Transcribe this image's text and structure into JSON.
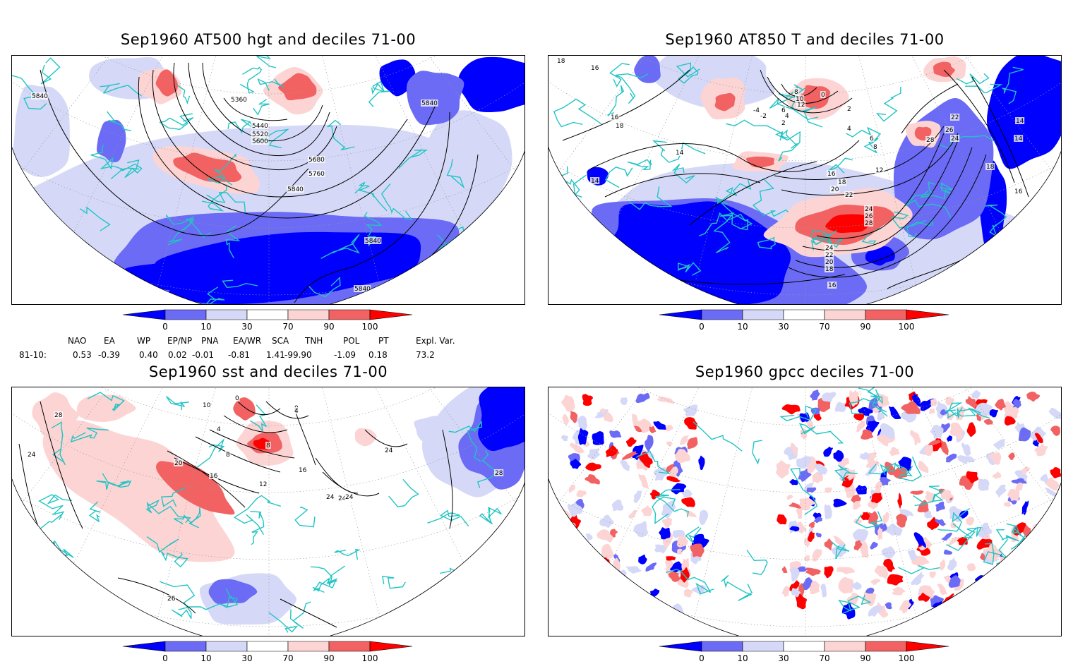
{
  "panels": [
    {
      "id": "p1",
      "title": "Sep1960 AT500 hgt and deciles 71-00",
      "contour_labels": [
        "5840",
        "5360",
        "5440",
        "5520",
        "5600",
        "5680",
        "5760",
        "5840",
        "5840",
        "5840",
        "5840"
      ]
    },
    {
      "id": "p2",
      "title": "Sep1960 AT850 T and deciles 71-00",
      "contour_labels": [
        "18",
        "16",
        "18",
        "16",
        "14",
        "14",
        "8",
        "10",
        "12",
        "6",
        "4",
        "2",
        "0",
        "-2",
        "-4",
        "2",
        "4",
        "6",
        "8",
        "12",
        "16",
        "18",
        "20",
        "22",
        "24",
        "26",
        "28",
        "24",
        "22",
        "20",
        "18",
        "16",
        "18",
        "26",
        "28",
        "22",
        "24",
        "18",
        "14",
        "16",
        "14"
      ]
    },
    {
      "id": "p3",
      "title": "Sep1960 sst and deciles 71-00",
      "contour_labels": [
        "28",
        "24",
        "24",
        "20",
        "16",
        "12",
        "8",
        "8",
        "4",
        "0",
        "0",
        "4",
        "16",
        "24",
        "24",
        "24",
        "28",
        "26",
        "10"
      ]
    },
    {
      "id": "p4",
      "title": "Sep1960 gpcc deciles 71-00",
      "contour_labels": []
    }
  ],
  "colorbar": {
    "labels": [
      "0",
      "10",
      "30",
      "70",
      "90",
      "100"
    ],
    "colors": {
      "below_0": "#0000ff",
      "d0_10": "#6b6bf5",
      "d10_30": "#d5d9f7",
      "d30_70": "#ffffff",
      "d70_90": "#fcd4d4",
      "d90_100": "#f26262",
      "above_100": "#ff0000"
    }
  },
  "indices": {
    "row_label": "81-10:",
    "names": [
      "NAO",
      "EA",
      "WP",
      "EP/NP",
      "PNA",
      "EA/WR",
      "SCA",
      "TNH",
      "POL",
      "PT",
      "Expl. Var."
    ],
    "values": [
      "0.53",
      "-0.39",
      "0.40",
      "0.02",
      "-0.01",
      "-0.81",
      "1.41",
      "-99.90",
      "-1.09",
      "0.18",
      "73.2"
    ]
  },
  "map_colors": {
    "coast": "#22c4c4",
    "contour": "#000000",
    "graticule": "#999999"
  }
}
